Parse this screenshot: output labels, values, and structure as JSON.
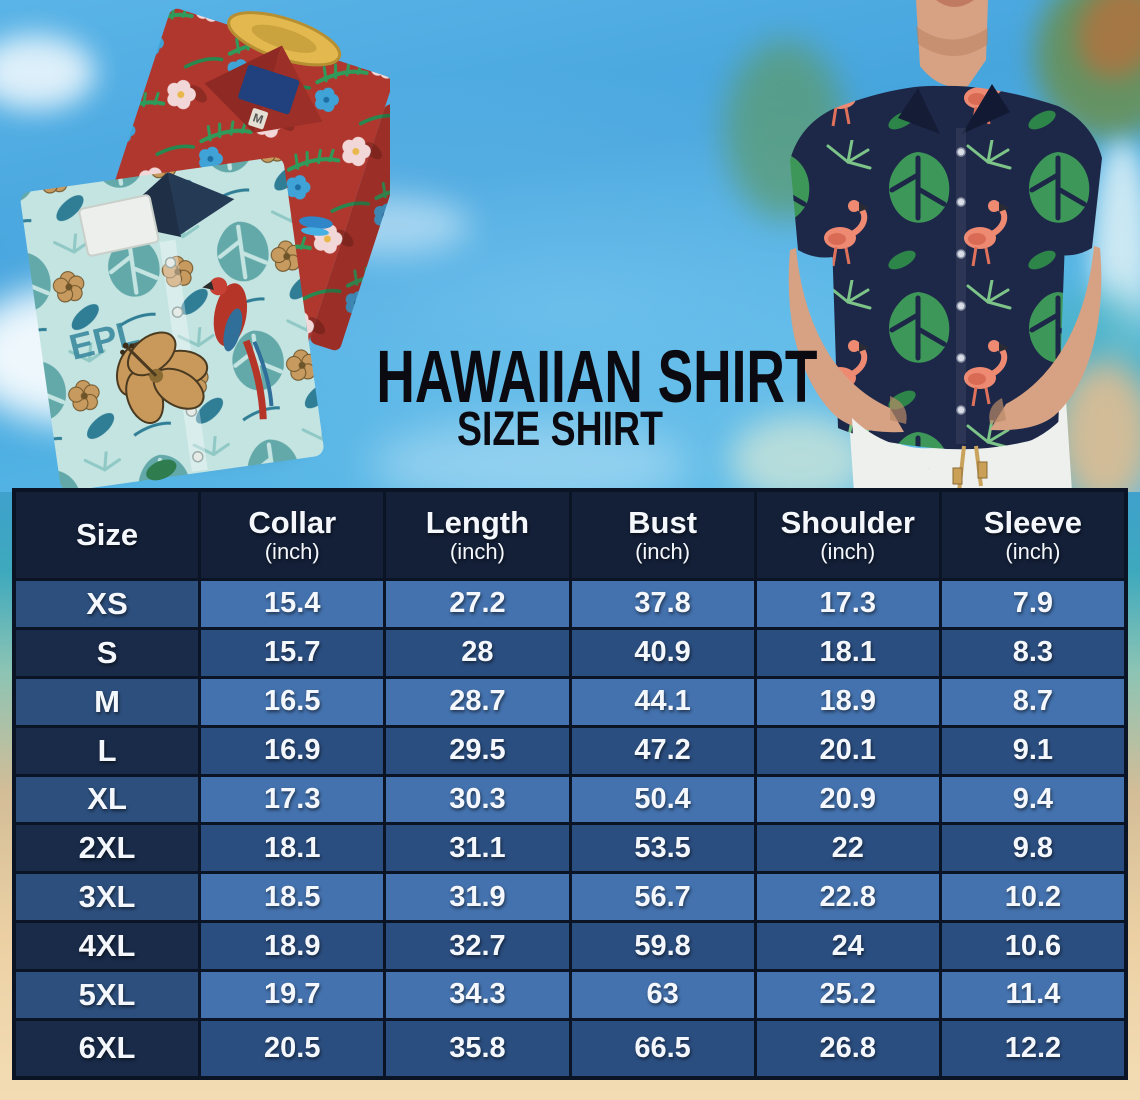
{
  "title": {
    "main": "HAWAIIAN SHIRT",
    "sub": "SIZE SHIRT"
  },
  "size_chart": {
    "columns": [
      {
        "label": "Size",
        "sub": ""
      },
      {
        "label": "Collar",
        "sub": "(inch)"
      },
      {
        "label": "Length",
        "sub": "(inch)"
      },
      {
        "label": "Bust",
        "sub": "(inch)"
      },
      {
        "label": "Shoulder",
        "sub": "(inch)"
      },
      {
        "label": "Sleeve",
        "sub": "(inch)"
      }
    ],
    "rows": [
      {
        "size": "XS",
        "values": [
          "15.4",
          "27.2",
          "37.8",
          "17.3",
          "7.9"
        ]
      },
      {
        "size": "S",
        "values": [
          "15.7",
          "28",
          "40.9",
          "18.1",
          "8.3"
        ]
      },
      {
        "size": "M",
        "values": [
          "16.5",
          "28.7",
          "44.1",
          "18.9",
          "8.7"
        ]
      },
      {
        "size": "L",
        "values": [
          "16.9",
          "29.5",
          "47.2",
          "20.1",
          "9.1"
        ]
      },
      {
        "size": "XL",
        "values": [
          "17.3",
          "30.3",
          "50.4",
          "20.9",
          "9.4"
        ]
      },
      {
        "size": "2XL",
        "values": [
          "18.1",
          "31.1",
          "53.5",
          "22",
          "9.8"
        ]
      },
      {
        "size": "3XL",
        "values": [
          "18.5",
          "31.9",
          "56.7",
          "22.8",
          "10.2"
        ]
      },
      {
        "size": "4XL",
        "values": [
          "18.9",
          "32.7",
          "59.8",
          "24",
          "10.6"
        ]
      },
      {
        "size": "5XL",
        "values": [
          "19.7",
          "34.3",
          "63",
          "25.2",
          "11.4"
        ]
      },
      {
        "size": "6XL",
        "values": [
          "20.5",
          "35.8",
          "66.5",
          "26.8",
          "12.2"
        ]
      }
    ]
  },
  "illustrations": {
    "left_photo": "two-folded-hawaiian-shirts",
    "right_photo": "man-wearing-navy-flamingo-hawaiian-shirt",
    "teal_shirt_print_text": "EPL",
    "red_shirt_size_tag": "M"
  },
  "colors": {
    "table_border": "#0a1424",
    "header_bg": "#142038",
    "row_odd_label_bg": "#2d4f7d",
    "row_odd_value_bg": "#4472ae",
    "row_even_label_bg": "#192b49",
    "row_even_value_bg": "#2b4e80",
    "title_color": "#0a0a10",
    "sky": "#4aa8de",
    "sand": "#ecd0a4",
    "red_shirt": "#b0372e",
    "teal_shirt": "#c4e4e2",
    "navy_shirt": "#1d2747"
  }
}
